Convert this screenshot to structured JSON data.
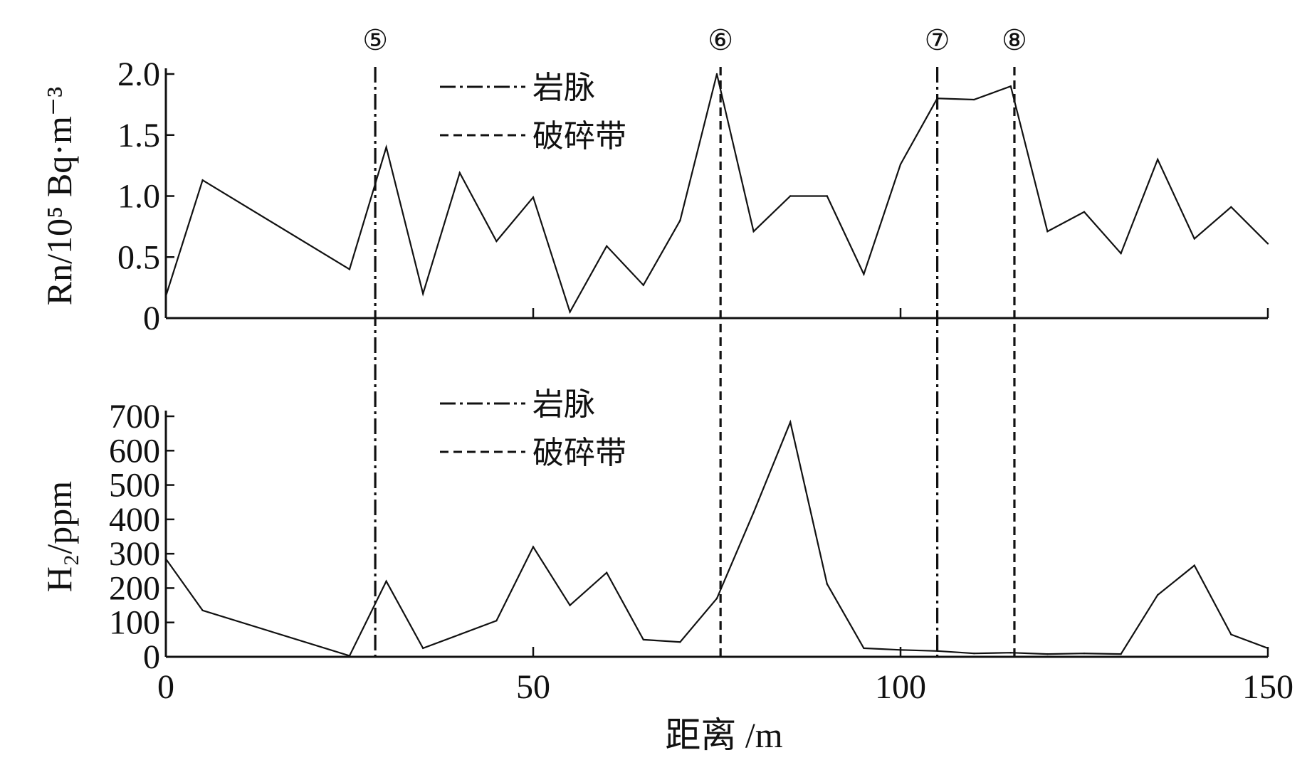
{
  "chart_data": [
    {
      "type": "line",
      "panel": "top",
      "ylabel": "Rn/10⁵ Bq·m⁻³",
      "ylim": [
        0,
        2.0
      ],
      "yticks": [
        "0",
        "0.5",
        "1.0",
        "1.5",
        "2.0"
      ],
      "ytick_values": [
        0,
        0.5,
        1.0,
        1.5,
        2.0
      ],
      "xlim": [
        0,
        150
      ],
      "x": [
        0,
        5,
        25,
        30,
        35,
        40,
        45,
        50,
        55,
        60,
        65,
        70,
        75,
        80,
        85,
        90,
        95,
        100,
        105,
        110,
        115,
        120,
        125,
        130,
        135,
        140,
        145,
        150
      ],
      "values": [
        0.18,
        1.13,
        0.4,
        1.4,
        0.2,
        1.19,
        0.63,
        0.99,
        0.05,
        0.59,
        0.27,
        0.8,
        2.0,
        0.71,
        1.0,
        1.0,
        0.36,
        1.26,
        1.8,
        1.79,
        1.9,
        0.71,
        0.87,
        0.53,
        1.3,
        0.65,
        0.91,
        0.61
      ],
      "legend": [
        {
          "label": "岩脉",
          "style": "dashdot"
        },
        {
          "label": "破碎带",
          "style": "dashed"
        }
      ]
    },
    {
      "type": "line",
      "panel": "bottom",
      "ylabel": "H₂/ppm",
      "ylim": [
        0,
        700
      ],
      "yticks": [
        "0",
        "100",
        "200",
        "300",
        "400",
        "500",
        "600",
        "700"
      ],
      "ytick_values": [
        0,
        100,
        200,
        300,
        400,
        500,
        600,
        700
      ],
      "xlim": [
        0,
        150
      ],
      "xticks": [
        "0",
        "50",
        "100",
        "150"
      ],
      "xtick_values": [
        0,
        50,
        100,
        150
      ],
      "xlabel": "距离 /m",
      "x": [
        0,
        5,
        25,
        30,
        35,
        40,
        45,
        50,
        55,
        60,
        65,
        70,
        75,
        80,
        85,
        90,
        95,
        100,
        105,
        110,
        115,
        120,
        125,
        130,
        135,
        140,
        145,
        150
      ],
      "values": [
        285,
        135,
        3,
        220,
        25,
        65,
        105,
        320,
        150,
        245,
        50,
        43,
        170,
        420,
        683,
        212,
        25,
        20,
        17,
        10,
        12,
        8,
        10,
        8,
        180,
        266,
        65,
        25
      ],
      "legend": [
        {
          "label": "岩脉",
          "style": "dashdot"
        },
        {
          "label": "破碎带",
          "style": "dashed"
        }
      ]
    }
  ],
  "markers": [
    {
      "label": "⑤",
      "x": 28.5,
      "style": "dashdot"
    },
    {
      "label": "⑥",
      "x": 75.5,
      "style": "dashed"
    },
    {
      "label": "⑦",
      "x": 105,
      "style": "dashdot"
    },
    {
      "label": "⑧",
      "x": 115.5,
      "style": "dashed"
    }
  ],
  "colors": {
    "line": "#111111",
    "background": "#ffffff"
  }
}
